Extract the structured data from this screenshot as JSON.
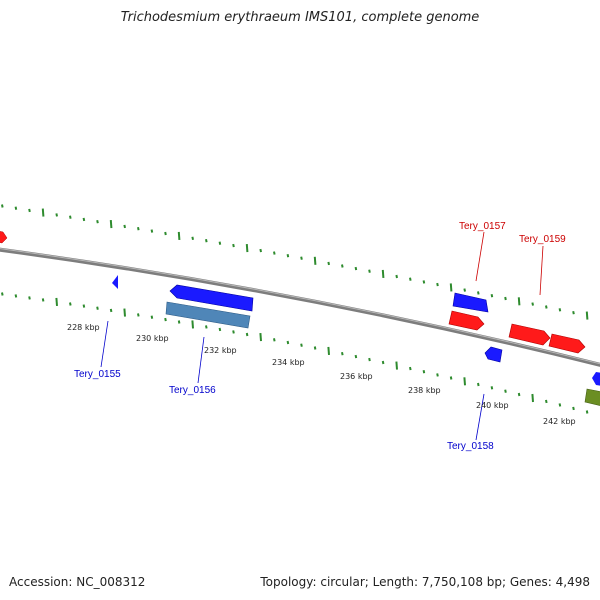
{
  "title": "Trichodesmium erythraeum IMS101, complete genome",
  "footer": {
    "accession": "Accession: NC_008312",
    "summary": "Topology: circular; Length: 7,750,108 bp; Genes: 4,498"
  },
  "scale": {
    "unit": "kbp",
    "labels": [
      "228 kbp",
      "230 kbp",
      "232 kbp",
      "234 kbp",
      "236 kbp",
      "238 kbp",
      "240 kbp",
      "242 kbp"
    ]
  },
  "colors": {
    "backbone": "#808080",
    "tick": "#2e8b2e",
    "forward_gene": "#ff1a1a",
    "reverse_gene": "#1a1aff",
    "rna_gene": "#4f86b8",
    "other_gene": "#6b8e23",
    "forward_label": "#cc0000",
    "reverse_label": "#0000cc"
  },
  "gene_labels": [
    {
      "text": "Tery_0155",
      "strand": "reverse"
    },
    {
      "text": "Tery_0156",
      "strand": "reverse"
    },
    {
      "text": "Tery_0157",
      "strand": "forward"
    },
    {
      "text": "Tery_0158",
      "strand": "reverse"
    },
    {
      "text": "Tery_0159",
      "strand": "forward"
    }
  ]
}
